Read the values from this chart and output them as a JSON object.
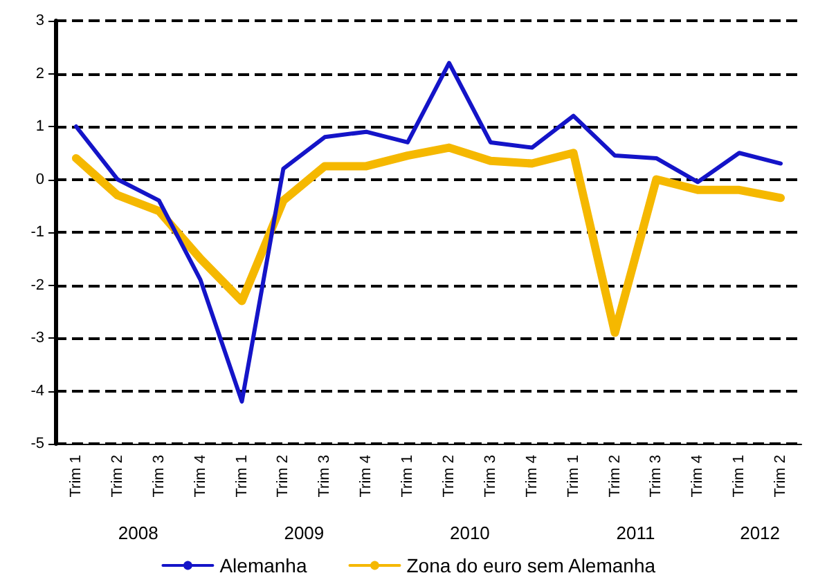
{
  "chart_data": {
    "type": "line",
    "categories": [
      "Trim 1",
      "Trim 2",
      "Trim 3",
      "Trim 4",
      "Trim 1",
      "Trim 2",
      "Trim 3",
      "Trim 4",
      "Trim 1",
      "Trim 2",
      "Trim 3",
      "Trim 4",
      "Trim 1",
      "Trim 2",
      "Trim 3",
      "Trim 4",
      "Trim 1",
      "Trim 2"
    ],
    "series": [
      {
        "name": "Alemanha",
        "color": "#1414c8",
        "values": [
          1.0,
          0.0,
          -0.4,
          -1.9,
          -4.2,
          0.2,
          0.8,
          0.9,
          0.7,
          2.2,
          0.7,
          0.6,
          1.2,
          0.45,
          0.4,
          -0.05,
          0.5,
          0.3
        ]
      },
      {
        "name": "Zona do euro sem Alemanha",
        "color": "#f5b800",
        "values": [
          0.4,
          -0.3,
          -0.6,
          -1.5,
          -2.3,
          -0.4,
          0.25,
          0.25,
          0.45,
          0.6,
          0.35,
          0.3,
          0.5,
          -2.9,
          0.0,
          -0.2,
          -0.2,
          -0.35
        ]
      }
    ],
    "annotations": [
      "2008",
      "2009",
      "2010",
      "2011",
      "2012"
    ],
    "ylim": [
      -5,
      3
    ],
    "yticks": [
      -5,
      -4,
      -3,
      -2,
      -1,
      0,
      1,
      2,
      3
    ],
    "grid": "y",
    "legend": "bottom",
    "marker": "none",
    "line_style": "solid"
  }
}
